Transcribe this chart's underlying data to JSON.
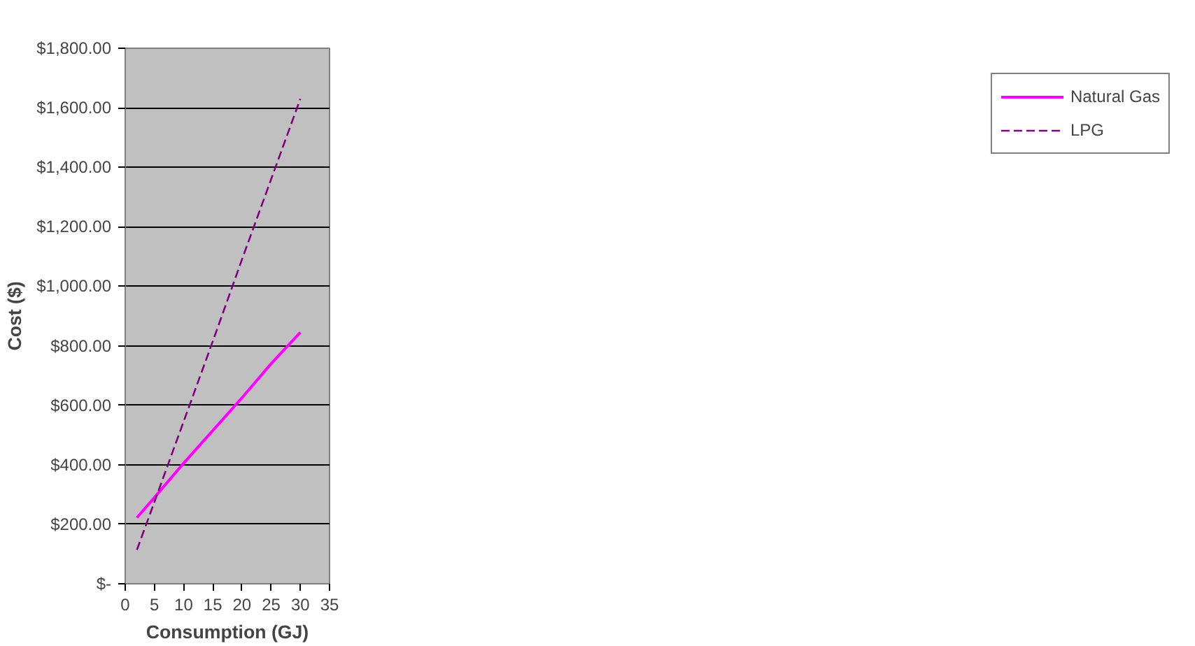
{
  "chart_data": {
    "type": "line",
    "xlabel": "Consumption (GJ)",
    "ylabel": "Cost ($)",
    "x": [
      2,
      5,
      10,
      15,
      20,
      25,
      30
    ],
    "series": [
      {
        "name": "Natural Gas",
        "color": "#ff00ff",
        "line_style": "solid",
        "values": [
          222,
          290,
          405,
          515,
          625,
          740,
          845
        ]
      },
      {
        "name": "LPG",
        "color": "#800080",
        "line_style": "dashed",
        "values": [
          114,
          275,
          545,
          815,
          1090,
          1360,
          1630
        ]
      }
    ],
    "xlim": [
      0,
      35
    ],
    "xticks": [
      0,
      5,
      10,
      15,
      20,
      25,
      30,
      35
    ],
    "ylim": [
      0,
      1800
    ],
    "yticks": [
      {
        "value": 0,
        "label": "$-"
      },
      {
        "value": 200,
        "label": "$200.00"
      },
      {
        "value": 400,
        "label": "$400.00"
      },
      {
        "value": 600,
        "label": "$600.00"
      },
      {
        "value": 800,
        "label": "$800.00"
      },
      {
        "value": 1000,
        "label": "$1,000.00"
      },
      {
        "value": 1200,
        "label": "$1,200.00"
      },
      {
        "value": 1400,
        "label": "$1,400.00"
      },
      {
        "value": 1600,
        "label": "$1,600.00"
      },
      {
        "value": 1800,
        "label": "$1,800.00"
      }
    ],
    "grid": "y",
    "legend": "right",
    "marker": "none"
  }
}
